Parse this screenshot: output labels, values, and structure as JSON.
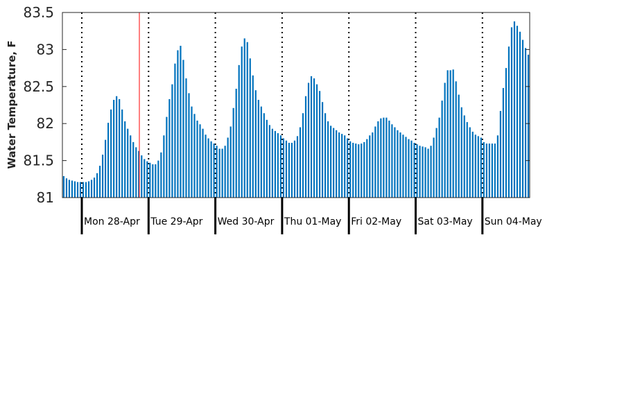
{
  "chart_data": {
    "type": "bar",
    "ylabel": "Water Temperature, F",
    "ylim": [
      81,
      83.5
    ],
    "yticks": [
      "81",
      "81.5",
      "82",
      "82.5",
      "83",
      "83.5"
    ],
    "ytick_values": [
      81,
      81.5,
      82,
      82.5,
      83,
      83.5
    ],
    "bar_color": "#0072bd",
    "marker_color": "#ff0000",
    "marker_hour": 28,
    "hours_before_first_day": 7,
    "grid": "dotted vertical lines at day boundaries",
    "days": [
      {
        "label": "Mon 28-Apr"
      },
      {
        "label": "Tue 29-Apr"
      },
      {
        "label": "Wed 30-Apr"
      },
      {
        "label": "Thu 01-May"
      },
      {
        "label": "Fri 02-May"
      },
      {
        "label": "Sat 03-May"
      },
      {
        "label": "Sun 04-May"
      }
    ],
    "values": [
      81.29,
      81.26,
      81.24,
      81.23,
      81.22,
      81.21,
      81.21,
      81.21,
      81.21,
      81.22,
      81.24,
      81.27,
      81.33,
      81.43,
      81.58,
      81.78,
      82.01,
      82.19,
      82.32,
      82.37,
      82.33,
      82.19,
      82.03,
      81.93,
      81.84,
      81.75,
      81.68,
      81.63,
      81.57,
      81.52,
      81.49,
      81.47,
      81.45,
      81.45,
      81.5,
      81.61,
      81.84,
      82.09,
      82.33,
      82.53,
      82.81,
      82.99,
      83.05,
      82.86,
      82.61,
      82.41,
      82.23,
      82.13,
      82.04,
      81.99,
      81.93,
      81.85,
      81.8,
      81.76,
      81.73,
      81.7,
      81.66,
      81.66,
      81.7,
      81.81,
      81.96,
      82.21,
      82.47,
      82.79,
      83.04,
      83.15,
      83.1,
      82.88,
      82.65,
      82.45,
      82.32,
      82.23,
      82.14,
      82.05,
      81.98,
      81.93,
      81.9,
      81.87,
      81.84,
      81.8,
      81.77,
      81.74,
      81.74,
      81.77,
      81.83,
      81.95,
      82.14,
      82.37,
      82.55,
      82.64,
      82.61,
      82.53,
      82.44,
      82.29,
      82.14,
      82.03,
      81.97,
      81.94,
      81.91,
      81.88,
      81.86,
      81.84,
      81.8,
      81.76,
      81.74,
      81.73,
      81.72,
      81.73,
      81.75,
      81.79,
      81.84,
      81.88,
      81.96,
      82.03,
      82.07,
      82.08,
      82.08,
      82.04,
      81.99,
      81.95,
      81.91,
      81.88,
      81.85,
      81.82,
      81.79,
      81.77,
      81.74,
      81.72,
      81.7,
      81.69,
      81.68,
      81.66,
      81.7,
      81.81,
      81.94,
      82.08,
      82.31,
      82.55,
      82.72,
      82.72,
      82.73,
      82.57,
      82.39,
      82.22,
      82.11,
      82.02,
      81.95,
      81.89,
      81.85,
      81.83,
      81.81,
      81.75,
      81.73,
      81.73,
      81.73,
      81.73,
      81.84,
      82.17,
      82.48,
      82.75,
      83.04,
      83.3,
      83.38,
      83.32,
      83.24,
      83.13,
      83.02,
      82.93,
      82.81
    ]
  }
}
